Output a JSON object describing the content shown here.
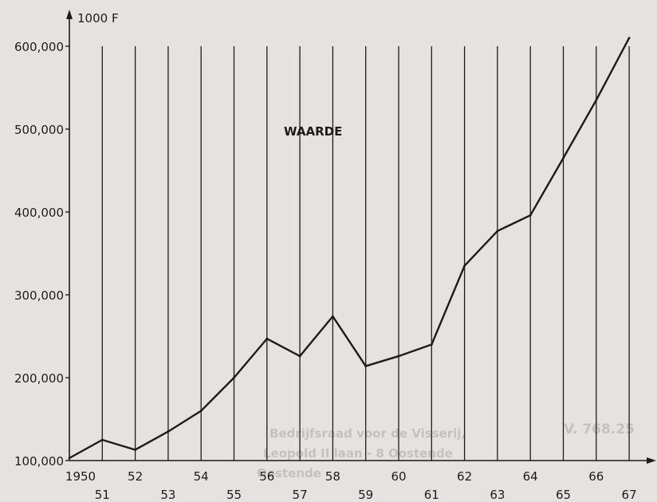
{
  "chart_data": {
    "type": "line",
    "unit_label": "1000 F",
    "series_label": "WAARDE",
    "series": [
      {
        "name": "WAARDE",
        "x": [
          "1950",
          "51",
          "52",
          "53",
          "54",
          "55",
          "56",
          "57",
          "58",
          "59",
          "60",
          "61",
          "62",
          "63",
          "64",
          "65",
          "66",
          "67"
        ],
        "values": [
          103000,
          125000,
          113000,
          135000,
          160000,
          200000,
          247000,
          226000,
          274000,
          214000,
          226000,
          240000,
          335000,
          377000,
          396000,
          465000,
          535000,
          610000
        ]
      }
    ],
    "x_tick_labels": [
      "1950",
      "51",
      "52",
      "53",
      "54",
      "55",
      "56",
      "57",
      "58",
      "59",
      "60",
      "61",
      "62",
      "63",
      "64",
      "65",
      "66",
      "67"
    ],
    "y_tick_values": [
      100000,
      200000,
      300000,
      400000,
      500000,
      600000
    ],
    "y_tick_labels": [
      "100,000",
      "200,000",
      "300,000",
      "400,000",
      "500,000",
      "600,000"
    ],
    "ylim": [
      100000,
      620000
    ],
    "grid": "vertical lines at every year"
  },
  "background_text": {
    "line1": "Bedrijfsraad voor de Visserij,",
    "line2": "Leopold II laan - 8 Oostende",
    "line3": "Oostende",
    "side": "V. 768.25"
  },
  "colors": {
    "paper": "#e4e3df",
    "ink": "#1c1c1c",
    "ghost": "#a9a8a3"
  }
}
